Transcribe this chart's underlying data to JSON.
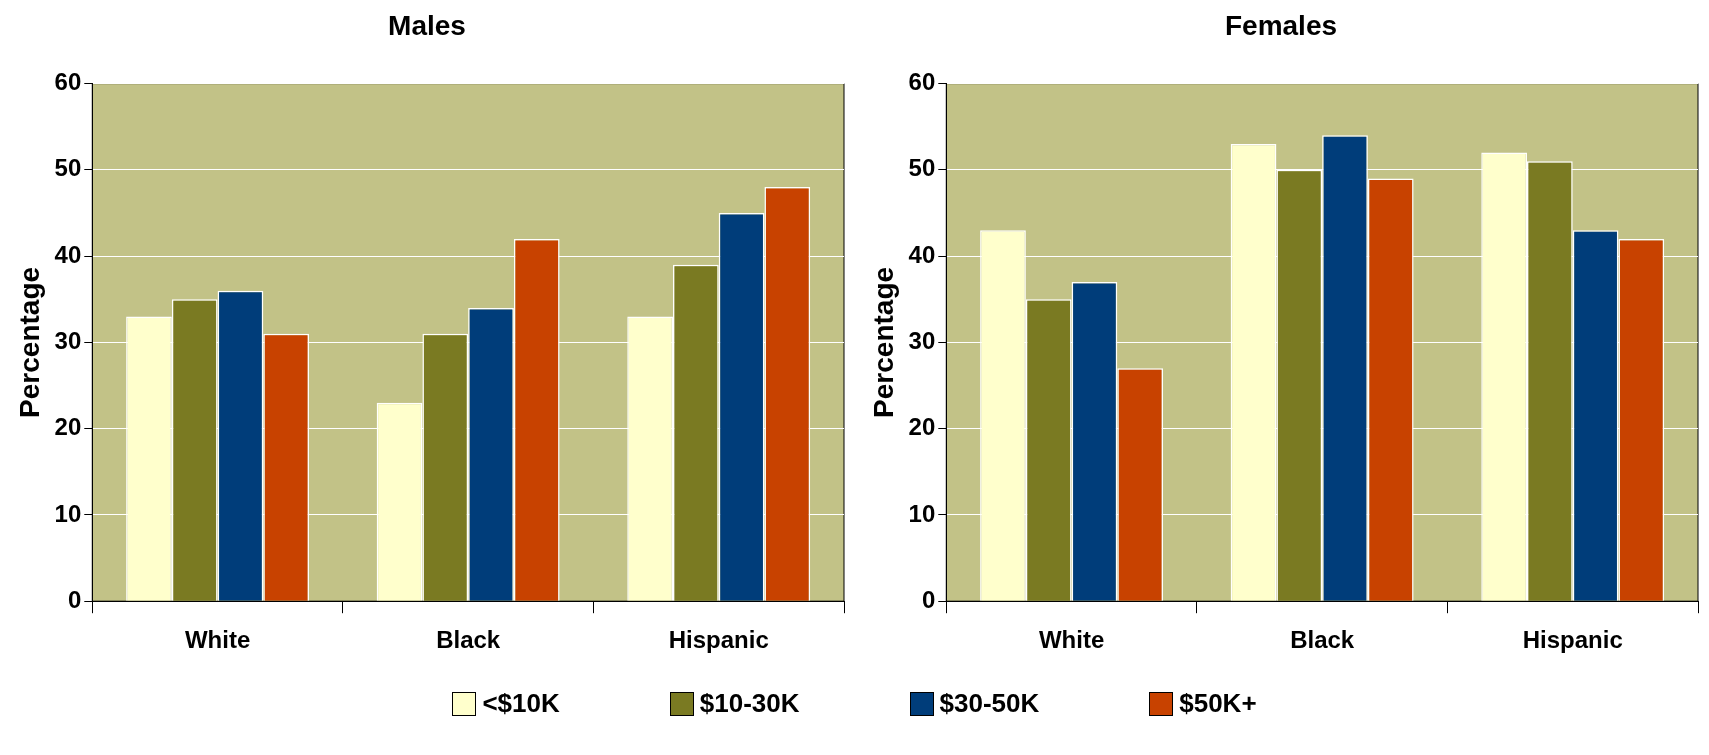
{
  "chart_data": [
    {
      "type": "bar",
      "title": "Males",
      "ylabel": "Percentage",
      "categories": [
        "White",
        "Black",
        "Hispanic"
      ],
      "series": [
        {
          "name": "<$10K",
          "color": "#ffffcc",
          "values": [
            33,
            23,
            33
          ]
        },
        {
          "name": "$10-30K",
          "color": "#7a7a22",
          "values": [
            35,
            31,
            39
          ]
        },
        {
          "name": "$30-50K",
          "color": "#003d7a",
          "values": [
            36,
            34,
            45
          ]
        },
        {
          "name": "$50K+",
          "color": "#c84200",
          "values": [
            31,
            42,
            48
          ]
        }
      ],
      "ylim": [
        0,
        60
      ],
      "yticks": [
        0,
        10,
        20,
        30,
        40,
        50,
        60
      ],
      "grid": "y",
      "legend": "bottom"
    },
    {
      "type": "bar",
      "title": "Females",
      "ylabel": "Percentage",
      "categories": [
        "White",
        "Black",
        "Hispanic"
      ],
      "series": [
        {
          "color": "#ffffcc",
          "values": [
            43,
            53,
            52
          ]
        },
        {
          "color": "#7a7a22",
          "values": [
            35,
            50,
            51
          ]
        },
        {
          "color": "#003d7a",
          "values": [
            37,
            54,
            43
          ]
        },
        {
          "color": "#c84200",
          "values": [
            27,
            49,
            42
          ]
        }
      ],
      "ylim": [
        0,
        60
      ],
      "yticks": [
        0,
        10,
        20,
        30,
        40,
        50,
        60
      ],
      "grid": "y"
    }
  ]
}
